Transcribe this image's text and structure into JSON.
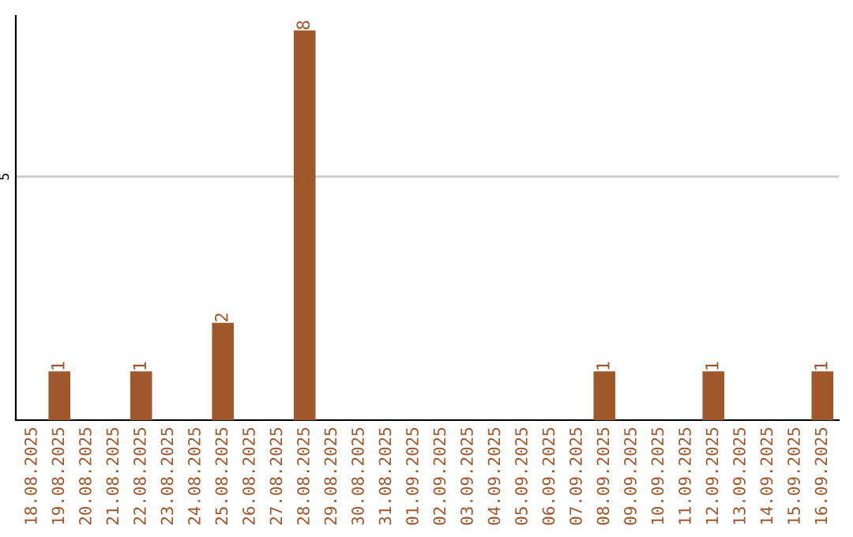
{
  "chart_data": {
    "type": "bar",
    "categories": [
      "18.08.2025",
      "19.08.2025",
      "20.08.2025",
      "21.08.2025",
      "22.08.2025",
      "23.08.2025",
      "24.08.2025",
      "25.08.2025",
      "26.08.2025",
      "27.08.2025",
      "28.08.2025",
      "29.08.2025",
      "30.08.2025",
      "31.08.2025",
      "01.09.2025",
      "02.09.2025",
      "03.09.2025",
      "04.09.2025",
      "05.09.2025",
      "06.09.2025",
      "07.09.2025",
      "08.09.2025",
      "09.09.2025",
      "10.09.2025",
      "11.09.2025",
      "12.09.2025",
      "13.09.2025",
      "14.09.2025",
      "15.09.2025",
      "16.09.2025"
    ],
    "values": [
      0,
      1,
      0,
      0,
      1,
      0,
      0,
      2,
      0,
      0,
      8,
      0,
      0,
      0,
      0,
      0,
      0,
      0,
      0,
      0,
      0,
      1,
      0,
      0,
      0,
      1,
      0,
      0,
      0,
      1
    ],
    "value_labels": [
      null,
      "1",
      null,
      null,
      "1",
      null,
      null,
      "2",
      null,
      null,
      "8",
      null,
      null,
      null,
      null,
      null,
      null,
      null,
      null,
      null,
      null,
      "1",
      null,
      null,
      null,
      "1",
      null,
      null,
      null,
      "1"
    ],
    "color": "#a0572a",
    "ylim": [
      0,
      8.3
    ],
    "yticks": [
      5
    ],
    "grid": "y",
    "legend": false
  }
}
